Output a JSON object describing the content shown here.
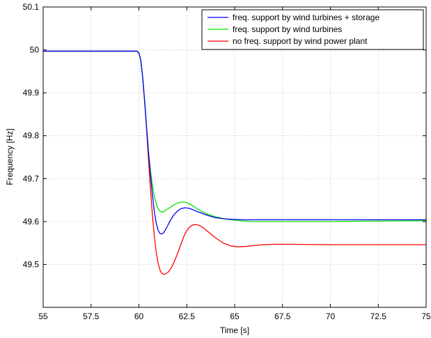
{
  "chart_data": {
    "type": "line",
    "title": "",
    "xlabel": "Time [s]",
    "ylabel": "Frequency [Hz]",
    "xlim": [
      55,
      75
    ],
    "ylim": [
      49.4,
      50.1
    ],
    "xticks": [
      55,
      57.5,
      60,
      62.5,
      65,
      67.5,
      70,
      72.5,
      75
    ],
    "yticks": [
      49.5,
      49.6,
      49.7,
      49.8,
      49.9,
      50,
      50.1
    ],
    "grid": true,
    "legend_position": "top-right",
    "series": [
      {
        "name": "freq. support by wind turbines + storage",
        "color": "#0000ff",
        "x": [
          55,
          59.9,
          60.0,
          60.1,
          60.2,
          60.3,
          60.4,
          60.5,
          60.6,
          60.7,
          60.8,
          60.9,
          61.0,
          61.1,
          61.2,
          61.3,
          61.4,
          61.5,
          61.6,
          61.8,
          62.0,
          62.2,
          62.4,
          62.6,
          62.8,
          63.0,
          63.3,
          63.6,
          64.0,
          64.5,
          65.0,
          65.5,
          66.0,
          67.0,
          68.0,
          70.0,
          72.5,
          75.0
        ],
        "y": [
          49.997,
          49.997,
          49.993,
          49.975,
          49.935,
          49.88,
          49.82,
          49.76,
          49.71,
          49.665,
          49.625,
          49.597,
          49.58,
          49.572,
          49.571,
          49.574,
          49.582,
          49.59,
          49.599,
          49.614,
          49.624,
          49.63,
          49.632,
          49.631,
          49.628,
          49.624,
          49.619,
          49.614,
          49.609,
          49.606,
          49.605,
          49.604,
          49.604,
          49.604,
          49.604,
          49.604,
          49.604,
          49.604
        ]
      },
      {
        "name": "freq. support by wind turbines",
        "color": "#00e000",
        "x": [
          55,
          59.9,
          60.0,
          60.1,
          60.2,
          60.3,
          60.4,
          60.5,
          60.6,
          60.7,
          60.8,
          60.9,
          61.0,
          61.1,
          61.2,
          61.3,
          61.4,
          61.5,
          61.6,
          61.8,
          62.0,
          62.2,
          62.4,
          62.6,
          62.8,
          63.0,
          63.3,
          63.6,
          64.0,
          64.5,
          65.0,
          65.5,
          66.0,
          67.0,
          68.0,
          70.0,
          72.5,
          75.0
        ],
        "y": [
          49.997,
          49.997,
          49.993,
          49.975,
          49.935,
          49.88,
          49.82,
          49.765,
          49.72,
          49.686,
          49.66,
          49.642,
          49.63,
          49.624,
          49.622,
          49.623,
          49.626,
          49.629,
          49.632,
          49.638,
          49.643,
          49.645,
          49.645,
          49.642,
          49.637,
          49.631,
          49.623,
          49.617,
          49.611,
          49.606,
          49.603,
          49.601,
          49.6,
          49.6,
          49.6,
          49.6,
          49.601,
          49.602
        ]
      },
      {
        "name": "no freq. support by wind power plant",
        "color": "#ff0000",
        "x": [
          55,
          59.9,
          60.0,
          60.1,
          60.2,
          60.3,
          60.4,
          60.5,
          60.6,
          60.7,
          60.8,
          60.9,
          61.0,
          61.1,
          61.2,
          61.3,
          61.4,
          61.5,
          61.6,
          61.7,
          61.8,
          62.0,
          62.2,
          62.4,
          62.6,
          62.8,
          63.0,
          63.2,
          63.4,
          63.7,
          64.0,
          64.4,
          64.8,
          65.2,
          65.6,
          66.0,
          66.5,
          67.0,
          68.0,
          70.0,
          72.5,
          75.0
        ],
        "y": [
          49.997,
          49.997,
          49.993,
          49.975,
          49.935,
          49.88,
          49.815,
          49.745,
          49.678,
          49.618,
          49.568,
          49.53,
          49.503,
          49.487,
          49.479,
          49.477,
          49.478,
          49.481,
          49.486,
          49.493,
          49.502,
          49.523,
          49.548,
          49.571,
          49.585,
          49.592,
          49.593,
          49.59,
          49.584,
          49.573,
          49.562,
          49.55,
          49.543,
          49.541,
          49.542,
          49.544,
          49.546,
          49.547,
          49.547,
          49.546,
          49.546,
          49.546
        ]
      }
    ]
  }
}
